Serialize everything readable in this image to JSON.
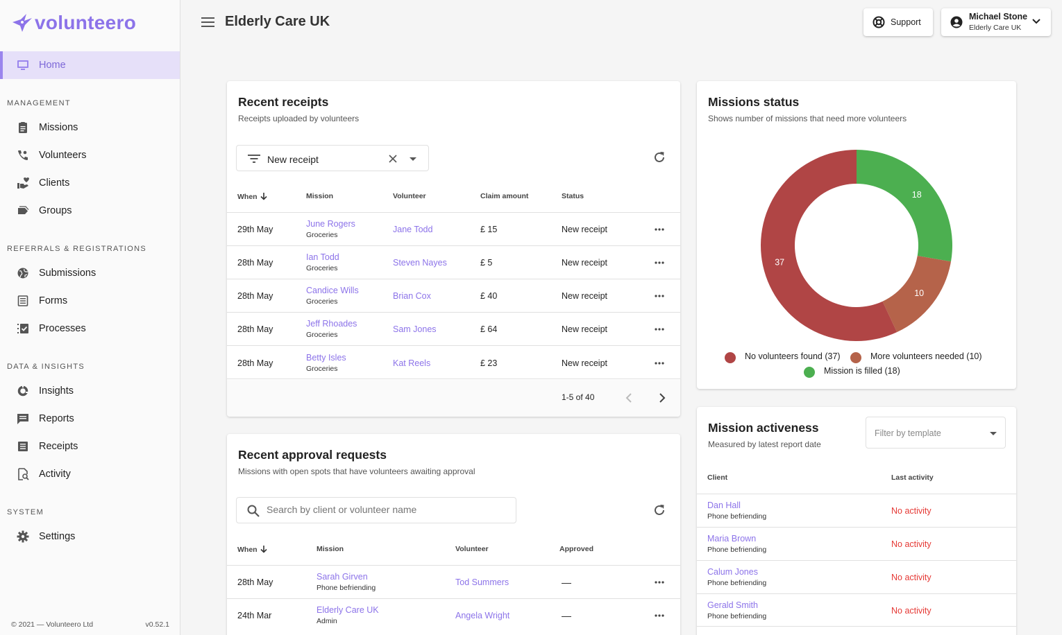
{
  "app": {
    "logo": "volunteero",
    "version": "v0.52.1",
    "copyright": "© 2021 — Volunteero Ltd"
  },
  "colors": {
    "accent": "#8c73e9",
    "no_volunteers": "#b04545",
    "more_needed": "#b5634a",
    "filled": "#4caf50",
    "no_activity": "#e53935"
  },
  "nav": {
    "home": "Home",
    "sections": {
      "management": "MANAGEMENT",
      "referrals": "REFERRALS & REGISTRATIONS",
      "data": "DATA & INSIGHTS",
      "system": "SYSTEM"
    },
    "items": {
      "missions": "Missions",
      "volunteers": "Volunteers",
      "clients": "Clients",
      "groups": "Groups",
      "submissions": "Submissions",
      "forms": "Forms",
      "processes": "Processes",
      "insights": "Insights",
      "reports": "Reports",
      "receipts": "Receipts",
      "activity": "Activity",
      "settings": "Settings"
    }
  },
  "header": {
    "title": "Elderly Care UK",
    "support": "Support",
    "user_name": "Michael Stone",
    "user_org": "Elderly Care UK"
  },
  "receipts": {
    "title": "Recent receipts",
    "subtitle": "Receipts uploaded by volunteers",
    "filter_value": "New receipt",
    "columns": {
      "when": "When",
      "mission": "Mission",
      "volunteer": "Volunteer",
      "amount": "Claim amount",
      "status": "Status"
    },
    "rows": [
      {
        "when": "29th May",
        "mission": "June Rogers",
        "mission_sub": "Groceries",
        "volunteer": "Jane Todd",
        "amount": "£ 15",
        "status": "New receipt"
      },
      {
        "when": "28th May",
        "mission": "Ian Todd",
        "mission_sub": "Groceries",
        "volunteer": "Steven Nayes",
        "amount": "£ 5",
        "status": "New receipt"
      },
      {
        "when": "28th May",
        "mission": "Candice Wills",
        "mission_sub": "Groceries",
        "volunteer": "Brian Cox",
        "amount": "£ 40",
        "status": "New receipt"
      },
      {
        "when": "28th May",
        "mission": "Jeff Rhoades",
        "mission_sub": "Groceries",
        "volunteer": "Sam Jones",
        "amount": "£ 64",
        "status": "New receipt"
      },
      {
        "when": "28th May",
        "mission": "Betty Isles",
        "mission_sub": "Groceries",
        "volunteer": "Kat Reels",
        "amount": "£ 23",
        "status": "New receipt"
      }
    ],
    "pagination": "1-5 of 40"
  },
  "approvals": {
    "title": "Recent approval requests",
    "subtitle": "Missions with open spots that have volunteers awaiting approval",
    "search_placeholder": "Search by client or volunteer name",
    "columns": {
      "when": "When",
      "mission": "Mission",
      "volunteer": "Volunteer",
      "approved": "Approved"
    },
    "rows": [
      {
        "when": "28th May",
        "mission": "Sarah Girven",
        "mission_sub": "Phone befriending",
        "volunteer": "Tod Summers",
        "approved": "—"
      },
      {
        "when": "24th Mar",
        "mission": "Elderly Care UK",
        "mission_sub": "Admin",
        "volunteer": "Angela Wright",
        "approved": "—"
      }
    ]
  },
  "missions_status": {
    "title": "Missions status",
    "subtitle": "Shows number of missions that need more volunteers"
  },
  "chart_data": {
    "type": "pie",
    "donut": true,
    "title": "Missions status",
    "legend_position": "bottom",
    "slices": [
      {
        "label": "Mission is filled (18)",
        "value": 18,
        "color": "#4caf50"
      },
      {
        "label": "More volunteers needed (10)",
        "value": 10,
        "color": "#b5634a"
      },
      {
        "label": "No volunteers found (37)",
        "value": 37,
        "color": "#b04545"
      }
    ]
  },
  "activeness": {
    "title": "Mission activeness",
    "subtitle": "Measured by latest report date",
    "filter_placeholder": "Filter by template",
    "columns": {
      "client": "Client",
      "last_activity": "Last activity"
    },
    "rows": [
      {
        "client": "Dan Hall",
        "type": "Phone befriending",
        "last": "No activity"
      },
      {
        "client": "Maria Brown",
        "type": "Phone befriending",
        "last": "No activity"
      },
      {
        "client": "Calum Jones",
        "type": "Phone befriending",
        "last": "No activity"
      },
      {
        "client": "Gerald Smith",
        "type": "Phone befriending",
        "last": "No activity"
      }
    ]
  }
}
